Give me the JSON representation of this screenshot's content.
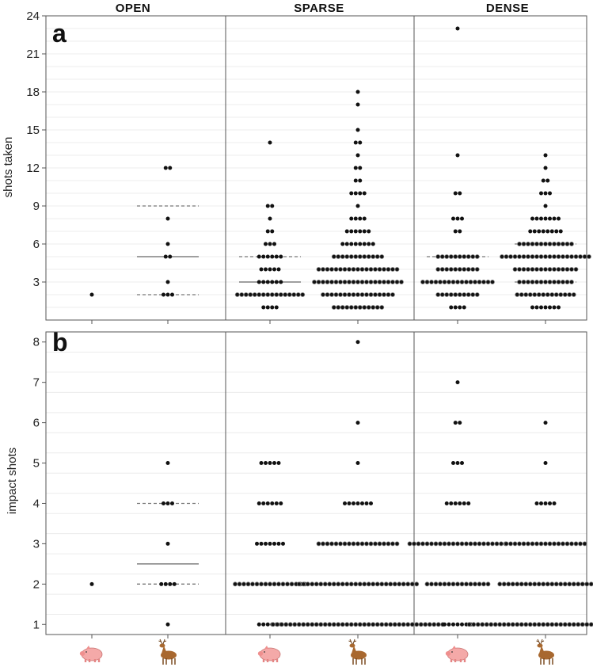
{
  "chart_data": [
    {
      "panel": "a",
      "type": "scatter",
      "subtype": "dot-strip",
      "ylabel": "shots taken",
      "ylim": [
        0,
        24
      ],
      "yticks": [
        3,
        6,
        9,
        12,
        15,
        18,
        21,
        24
      ],
      "grid": true,
      "facets": [
        "OPEN",
        "SPARSE",
        "DENSE"
      ],
      "categories": [
        "pig",
        "deer"
      ],
      "groups": [
        {
          "facet": "OPEN",
          "animal": "pig",
          "counts": {
            "2": 1
          },
          "median": null,
          "quartiles": null
        },
        {
          "facet": "OPEN",
          "animal": "deer",
          "counts": {
            "2": 3,
            "3": 1,
            "5": 2,
            "6": 1,
            "8": 1,
            "12": 2
          },
          "median": 5,
          "quartiles": [
            2,
            9
          ]
        },
        {
          "facet": "SPARSE",
          "animal": "pig",
          "counts": {
            "1": 4,
            "2": 16,
            "3": 6,
            "4": 5,
            "5": 6,
            "6": 3,
            "7": 2,
            "8": 1,
            "9": 2,
            "14": 1
          },
          "median": 3,
          "quartiles": [
            2,
            5
          ]
        },
        {
          "facet": "SPARSE",
          "animal": "deer",
          "counts": {
            "1": 12,
            "2": 17,
            "3": 21,
            "4": 19,
            "5": 12,
            "6": 8,
            "7": 6,
            "8": 4,
            "9": 1,
            "10": 4,
            "11": 2,
            "12": 2,
            "13": 1,
            "14": 2,
            "15": 1,
            "17": 1,
            "18": 1
          },
          "median": 4,
          "quartiles": [
            2,
            4
          ]
        },
        {
          "facet": "DENSE",
          "animal": "pig",
          "counts": {
            "1": 4,
            "2": 10,
            "3": 17,
            "4": 10,
            "5": 10,
            "7": 2,
            "8": 3,
            "10": 2,
            "13": 1,
            "23": 1
          },
          "median": 3,
          "quartiles": [
            3,
            5
          ]
        },
        {
          "facet": "DENSE",
          "animal": "deer",
          "counts": {
            "1": 7,
            "2": 14,
            "3": 13,
            "4": 15,
            "5": 21,
            "6": 13,
            "7": 8,
            "8": 7,
            "9": 1,
            "10": 3,
            "11": 2,
            "12": 1,
            "13": 1
          },
          "median": 5,
          "quartiles": [
            3,
            6
          ]
        }
      ]
    },
    {
      "panel": "b",
      "type": "scatter",
      "subtype": "dot-strip",
      "ylabel": "impact shots",
      "ylim": [
        0.75,
        8.25
      ],
      "yticks": [
        1,
        2,
        3,
        4,
        5,
        6,
        7,
        8
      ],
      "grid": true,
      "facets": [
        "OPEN",
        "SPARSE",
        "DENSE"
      ],
      "categories": [
        "pig",
        "deer"
      ],
      "groups": [
        {
          "facet": "OPEN",
          "animal": "pig",
          "counts": {
            "2": 1
          },
          "median": null,
          "quartiles": null
        },
        {
          "facet": "OPEN",
          "animal": "deer",
          "counts": {
            "1": 1,
            "2": 4,
            "3": 1,
            "4": 3,
            "5": 1
          },
          "median": 2.5,
          "quartiles": [
            2,
            4
          ]
        },
        {
          "facet": "SPARSE",
          "animal": "pig",
          "counts": {
            "1": 6,
            "2": 17,
            "3": 7,
            "4": 6,
            "5": 5
          },
          "median": null,
          "quartiles": null
        },
        {
          "facet": "SPARSE",
          "animal": "deer",
          "counts": {
            "1": 40,
            "2": 28,
            "3": 19,
            "4": 7,
            "5": 1,
            "6": 1,
            "8": 1
          },
          "median": null,
          "quartiles": null
        },
        {
          "facet": "DENSE",
          "animal": "pig",
          "counts": {
            "1": 7,
            "2": 15,
            "3": 23,
            "4": 6,
            "5": 3,
            "6": 2,
            "7": 1
          },
          "median": null,
          "quartiles": null
        },
        {
          "facet": "DENSE",
          "animal": "deer",
          "counts": {
            "1": 36,
            "2": 22,
            "3": 19,
            "4": 5,
            "5": 1,
            "6": 1
          },
          "median": null,
          "quartiles": null
        }
      ]
    }
  ]
}
